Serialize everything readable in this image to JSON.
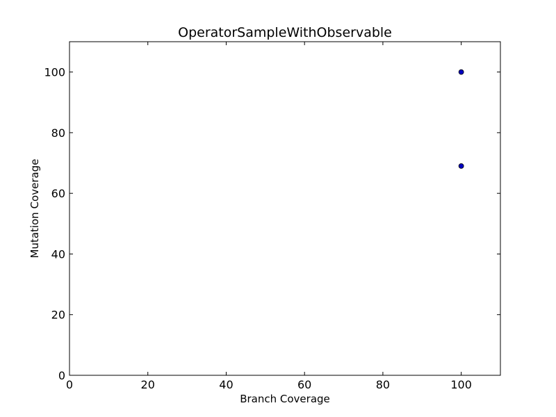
{
  "chart_data": {
    "type": "scatter",
    "title": "OperatorSampleWithObservable",
    "xlabel": "Branch Coverage",
    "ylabel": "Mutation Coverage",
    "xlim": [
      0,
      110
    ],
    "ylim": [
      0,
      110
    ],
    "xticks": [
      0,
      20,
      40,
      60,
      80,
      100
    ],
    "yticks": [
      0,
      20,
      40,
      60,
      80,
      100
    ],
    "grid": false,
    "points": [
      {
        "x": 100,
        "y": 100
      },
      {
        "x": 100,
        "y": 69
      }
    ],
    "colors": {
      "marker_fill": "#0000c0",
      "marker_edge": "#000000",
      "axes": "#000000",
      "background": "#ffffff"
    }
  }
}
